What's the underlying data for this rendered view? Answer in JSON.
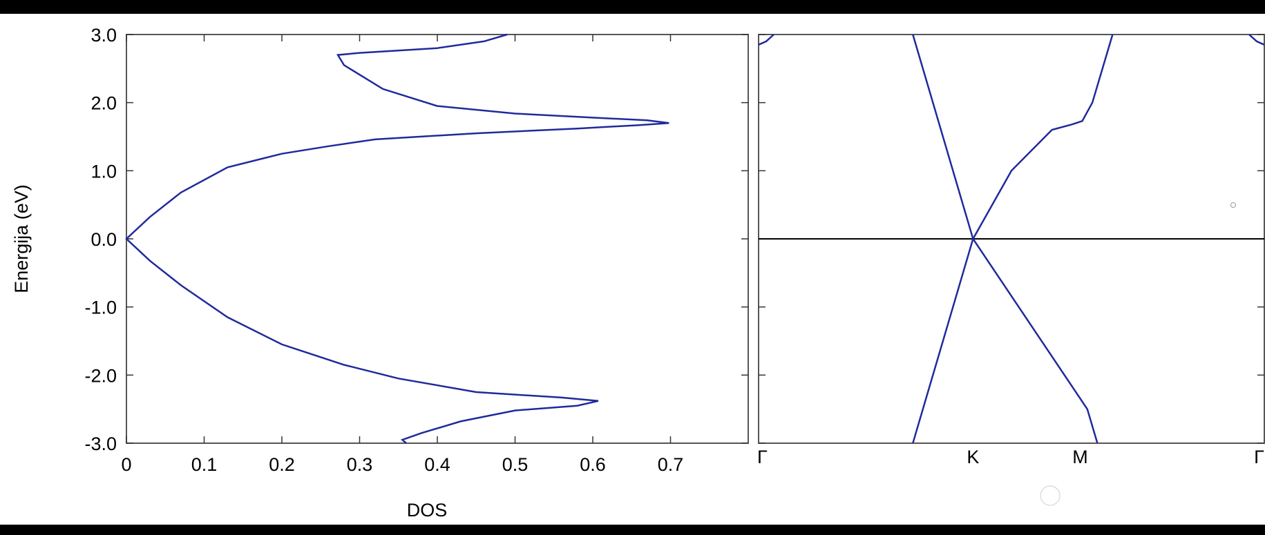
{
  "colors": {
    "page": "#000000",
    "panel": "#ffffff",
    "curve": "#1f2a9c",
    "axis": "#000000",
    "text": "#000000",
    "frame": "#555555"
  },
  "chart_data": [
    {
      "type": "line",
      "xlabel": "DOS",
      "ylabel": "Energija (eV)",
      "xlim": [
        0,
        0.8
      ],
      "ylim": [
        -3.0,
        3.0
      ],
      "x_ticks": [
        "0",
        "0.1",
        "0.2",
        "0.3",
        "0.4",
        "0.5",
        "0.6",
        "0.7"
      ],
      "y_ticks": [
        "3.0",
        "2.0",
        "1.0",
        "0.0",
        "-1.0",
        "-2.0",
        "-3.0"
      ],
      "grid": false,
      "series": [
        {
          "points": [
            [
              0.36,
              -3.0
            ],
            [
              0.355,
              -2.95
            ],
            [
              0.38,
              -2.85
            ],
            [
              0.43,
              -2.68
            ],
            [
              0.5,
              -2.52
            ],
            [
              0.58,
              -2.45
            ],
            [
              0.607,
              -2.38
            ],
            [
              0.56,
              -2.33
            ],
            [
              0.45,
              -2.25
            ],
            [
              0.35,
              -2.05
            ],
            [
              0.28,
              -1.85
            ],
            [
              0.2,
              -1.55
            ],
            [
              0.13,
              -1.15
            ],
            [
              0.07,
              -0.68
            ],
            [
              0.03,
              -0.32
            ],
            [
              0.0,
              0.0
            ],
            [
              0.03,
              0.32
            ],
            [
              0.07,
              0.68
            ],
            [
              0.13,
              1.05
            ],
            [
              0.2,
              1.25
            ],
            [
              0.26,
              1.36
            ],
            [
              0.32,
              1.46
            ],
            [
              0.45,
              1.55
            ],
            [
              0.58,
              1.62
            ],
            [
              0.66,
              1.67
            ],
            [
              0.698,
              1.7
            ],
            [
              0.67,
              1.74
            ],
            [
              0.6,
              1.78
            ],
            [
              0.5,
              1.84
            ],
            [
              0.4,
              1.95
            ],
            [
              0.33,
              2.2
            ],
            [
              0.28,
              2.55
            ],
            [
              0.272,
              2.7
            ],
            [
              0.3,
              2.73
            ],
            [
              0.4,
              2.8
            ],
            [
              0.46,
              2.9
            ],
            [
              0.49,
              3.0
            ]
          ]
        }
      ]
    },
    {
      "type": "line",
      "x_tick_labels": [
        "Γ",
        "K",
        "M",
        "Γ"
      ],
      "x_tick_positions": [
        0,
        0.424,
        0.636,
        1.0
      ],
      "ylim": [
        -3.0,
        3.0
      ],
      "y_ticks": [
        3.0,
        2.0,
        1.0,
        0.0,
        -1.0,
        -2.0,
        -3.0
      ],
      "horizontal_line": 0.0,
      "grid": false,
      "series": [
        {
          "points": [
            [
              0.305,
              3.0
            ],
            [
              0.424,
              0.0
            ],
            [
              0.65,
              -2.5
            ],
            [
              0.67,
              -3.0
            ]
          ]
        },
        {
          "points": [
            [
              0.305,
              -3.0
            ],
            [
              0.424,
              0.0
            ],
            [
              0.5,
              1.0
            ],
            [
              0.58,
              1.6
            ],
            [
              0.62,
              1.68
            ],
            [
              0.64,
              1.73
            ],
            [
              0.66,
              2.0
            ],
            [
              0.7,
              3.0
            ]
          ]
        },
        {
          "points": [
            [
              0.0,
              2.85
            ],
            [
              0.015,
              2.9
            ],
            [
              0.03,
              3.0
            ]
          ]
        },
        {
          "points": [
            [
              0.97,
              3.0
            ],
            [
              0.985,
              2.9
            ],
            [
              1.0,
              2.85
            ]
          ]
        }
      ]
    }
  ]
}
